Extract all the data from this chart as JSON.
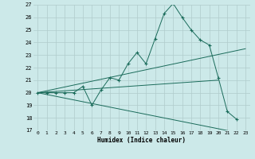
{
  "xlabel": "Humidex (Indice chaleur)",
  "bg_color": "#cce9e9",
  "grid_color": "#b0cccc",
  "line_color": "#1a6b5a",
  "xlim": [
    -0.5,
    23.5
  ],
  "ylim": [
    17,
    27
  ],
  "xticks": [
    0,
    1,
    2,
    3,
    4,
    5,
    6,
    7,
    8,
    9,
    10,
    11,
    12,
    13,
    14,
    15,
    16,
    17,
    18,
    19,
    20,
    21,
    22,
    23
  ],
  "yticks": [
    17,
    18,
    19,
    20,
    21,
    22,
    23,
    24,
    25,
    26,
    27
  ],
  "series": [
    {
      "x": [
        0,
        1,
        2,
        3,
        4,
        5,
        6,
        7,
        8,
        9,
        10,
        11,
        12,
        13,
        14,
        15,
        16,
        17,
        18,
        19,
        20,
        21,
        22
      ],
      "y": [
        20,
        20,
        20,
        20,
        20,
        20.5,
        19.0,
        20.2,
        21.2,
        21.0,
        22.3,
        23.2,
        22.3,
        24.3,
        26.3,
        27.1,
        26.0,
        25.0,
        24.2,
        23.8,
        21.2,
        18.5,
        17.9
      ],
      "marker": true
    },
    {
      "x": [
        0,
        23
      ],
      "y": [
        20,
        23.5
      ],
      "marker": false
    },
    {
      "x": [
        0,
        20
      ],
      "y": [
        20,
        21.0
      ],
      "marker": false
    },
    {
      "x": [
        0,
        23
      ],
      "y": [
        20,
        16.7
      ],
      "marker": false
    }
  ]
}
